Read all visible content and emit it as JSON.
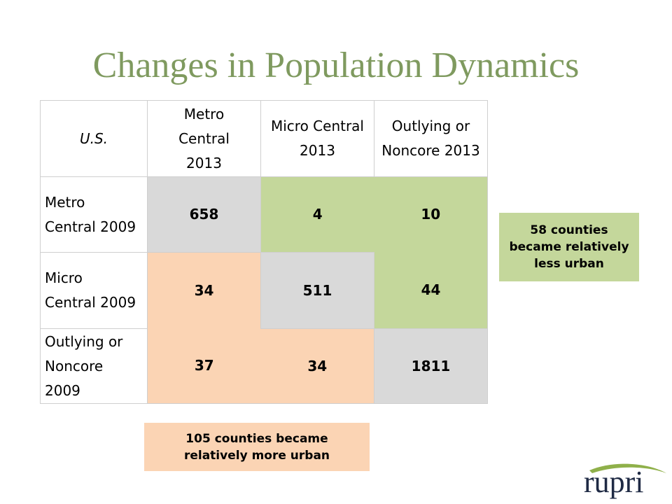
{
  "slide": {
    "title": "Changes in Population Dynamics"
  },
  "table": {
    "corner_label": "U.S.",
    "column_headers": [
      [
        "Metro",
        "Central",
        "2013"
      ],
      [
        "Micro Central",
        "2013"
      ],
      [
        "Outlying or",
        "Noncore 2013"
      ]
    ],
    "rows": [
      {
        "header": [
          "Metro",
          "Central 2009"
        ],
        "values": [
          "658",
          "4",
          "10"
        ]
      },
      {
        "header": [
          "Micro",
          "Central 2009"
        ],
        "values": [
          "34",
          "511",
          "44"
        ]
      },
      {
        "header": [
          "Outlying or",
          "Noncore",
          "2009"
        ],
        "values": [
          "37",
          "34",
          "1811"
        ]
      }
    ]
  },
  "callouts": {
    "less_urban": [
      "58 counties",
      "became relatively",
      "less urban"
    ],
    "more_urban": [
      "105 counties became",
      "relatively more urban"
    ]
  },
  "logo": {
    "text": "rupri"
  },
  "colors": {
    "title": "#7f9a5f",
    "diagonal": "#d9d9d9",
    "less_urban": "#c4d79b",
    "more_urban": "#fbd4b4"
  }
}
